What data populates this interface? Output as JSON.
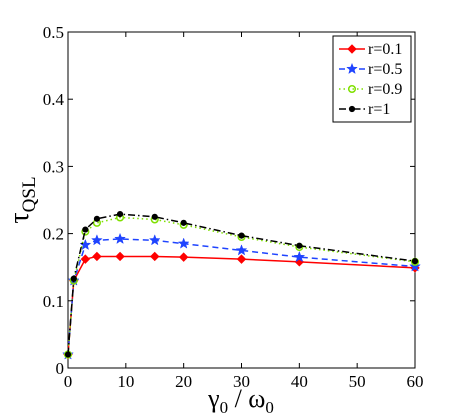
{
  "chart_data": {
    "type": "line",
    "xlabel": "γ0 / ω0",
    "xlabel_main": "γ",
    "xlabel_sub1": "0",
    "xlabel_sep": " / ω",
    "xlabel_sub2": "0",
    "ylabel": "τQSL",
    "ylabel_main": "τ",
    "ylabel_sub": "QSL",
    "xlim": [
      0,
      60
    ],
    "ylim": [
      0,
      0.5
    ],
    "xticks": [
      0,
      10,
      20,
      30,
      40,
      50,
      60
    ],
    "xtick_labels": [
      "0",
      "10",
      "20",
      "30",
      "40",
      "50",
      "60"
    ],
    "yticks": [
      0,
      0.1,
      0.2,
      0.3,
      0.4,
      0.5
    ],
    "ytick_labels": [
      "0",
      "0.1",
      "0.2",
      "0.3",
      "0.4",
      "0.5"
    ],
    "grid": false,
    "legend_position": "top-right",
    "x": [
      0,
      1,
      3,
      5,
      9,
      15,
      20,
      30,
      40,
      60
    ],
    "series": [
      {
        "name": "r=0.1",
        "color": "#ff0000",
        "line": "solid",
        "marker": "diamond",
        "values": [
          0.02,
          0.13,
          0.162,
          0.166,
          0.166,
          0.166,
          0.165,
          0.162,
          0.158,
          0.149
        ]
      },
      {
        "name": "r=0.5",
        "color": "#1f44ff",
        "line": "dashed",
        "marker": "star",
        "values": [
          0.02,
          0.13,
          0.183,
          0.19,
          0.192,
          0.19,
          0.185,
          0.175,
          0.165,
          0.151
        ]
      },
      {
        "name": "r=0.9",
        "color": "#7fe000",
        "line": "dotted",
        "marker": "circle",
        "values": [
          0.02,
          0.13,
          0.203,
          0.216,
          0.224,
          0.221,
          0.213,
          0.195,
          0.18,
          0.158
        ]
      },
      {
        "name": "r=1",
        "color": "#000000",
        "line": "dashdot",
        "marker": "dot",
        "values": [
          0.02,
          0.133,
          0.206,
          0.222,
          0.229,
          0.225,
          0.216,
          0.197,
          0.182,
          0.159
        ]
      }
    ]
  }
}
